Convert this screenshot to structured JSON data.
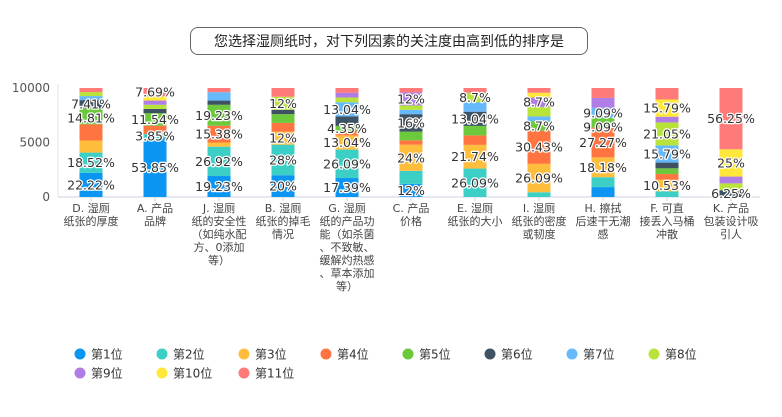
{
  "chart_data": {
    "type": "bar",
    "stacked": true,
    "title": "您选择湿厕纸时，对下列因素的关注度由高到低的排序是",
    "ylim": [
      0,
      10000
    ],
    "yticks": [
      "0",
      "5000",
      "10000"
    ],
    "yticks_values": [
      0,
      5000,
      10000
    ],
    "grid": false,
    "legend_position": "bottom",
    "categories": [
      "D. 湿厕纸张的厚度",
      "A. 产品品牌",
      "J. 湿厕纸的安全性（如纯水配方、0添加等）",
      "B. 湿厕纸张的掉毛情况",
      "G. 湿厕纸的产品功能（如杀菌、不致敏、缓解灼热感、草本添加等）",
      "C. 产品价格",
      "E. 湿厕纸张的大小",
      "I. 湿厕纸张的密度或韧度",
      "H. 擦拭后速干无潮感",
      "F. 可直接丢入马桶冲散",
      "K. 产品包装设计吸引人"
    ],
    "series_names": [
      "第1位",
      "第2位",
      "第3位",
      "第4位",
      "第5位",
      "第6位",
      "第7位",
      "第8位",
      "第9位",
      "第10位",
      "第11位"
    ],
    "colors": [
      "#0a95f2",
      "#3ccfc6",
      "#ffbd3e",
      "#ff7440",
      "#6bc93b",
      "#3e5263",
      "#66b9fb",
      "#b8e33a",
      "#b07de6",
      "#ffe83a",
      "#ff7a78"
    ],
    "percent_values": [
      [
        22.22,
        18.52,
        11.11,
        14.81,
        14.81,
        7.41,
        3.7,
        3.7,
        0,
        0,
        3.7
      ],
      [
        53.85,
        3.85,
        0,
        7.69,
        11.54,
        3.85,
        0,
        3.85,
        3.85,
        3.85,
        7.69
      ],
      [
        19.23,
        26.92,
        3.85,
        15.38,
        19.23,
        3.85,
        7.69,
        0,
        0,
        0,
        3.85
      ],
      [
        20,
        28,
        12,
        8,
        8,
        4,
        0,
        12,
        0,
        0,
        8
      ],
      [
        17.39,
        26.09,
        13.04,
        4.35,
        4.35,
        8.7,
        13.04,
        4.35,
        4.35,
        0,
        4.35
      ],
      [
        12,
        12,
        24,
        4,
        8,
        16,
        4,
        4,
        12,
        0,
        4
      ],
      [
        0,
        26.09,
        21.74,
        8.7,
        8.7,
        13.04,
        8.7,
        8.7,
        0,
        0,
        4.35
      ],
      [
        0,
        4.35,
        26.09,
        30.43,
        8.7,
        0,
        4.35,
        8.7,
        8.7,
        4.35,
        4.35
      ],
      [
        9.09,
        9.09,
        18.18,
        27.27,
        9.09,
        0,
        9.09,
        0,
        9.09,
        0,
        9.09
      ],
      [
        0,
        5.26,
        10.53,
        5.26,
        5.26,
        5.26,
        15.79,
        21.05,
        5.26,
        15.79,
        10.53
      ],
      [
        0,
        0,
        0,
        0,
        0,
        6.25,
        0,
        6.25,
        6.25,
        25,
        56.25
      ]
    ],
    "data_labels": [
      [
        "22.22%",
        "18.52%",
        "",
        "",
        "14.81%",
        "7.41%",
        "",
        "",
        "",
        "",
        ""
      ],
      [
        "53.85%",
        "3.85%",
        "",
        "",
        "11.54%",
        "",
        "",
        "",
        "",
        "",
        "7.69%"
      ],
      [
        "19.23%",
        "26.92%",
        "",
        "15.38%",
        "19.23%",
        "",
        "",
        "",
        "",
        "",
        ""
      ],
      [
        "20%",
        "28%",
        "12%",
        "",
        "",
        "",
        "",
        "12%",
        "",
        "",
        ""
      ],
      [
        "17.39%",
        "26.09%",
        "13.04%",
        "",
        "4.35%",
        "",
        "13.04%",
        "",
        "",
        "",
        ""
      ],
      [
        "12%",
        "",
        "24%",
        "",
        "",
        "16%",
        "",
        "",
        "12%",
        "",
        ""
      ],
      [
        "",
        "26.09%",
        "21.74%",
        "",
        "",
        "13.04%",
        "",
        "8.7%",
        "",
        "",
        ""
      ],
      [
        "",
        "",
        "26.09%",
        "30.43%",
        "8.7%",
        "",
        "",
        "",
        "8.7%",
        "",
        ""
      ],
      [
        "",
        "",
        "18.18%",
        "27.27%",
        "9.09%",
        "",
        "9.09%",
        "",
        "",
        "",
        ""
      ],
      [
        "",
        "",
        "10.53%",
        "",
        "",
        "",
        "15.79%",
        "21.05%",
        "",
        "15.79%",
        ""
      ],
      [
        "",
        "",
        "",
        "",
        "",
        "6.25%",
        "",
        "",
        "",
        "25%",
        "56.25%"
      ]
    ]
  }
}
